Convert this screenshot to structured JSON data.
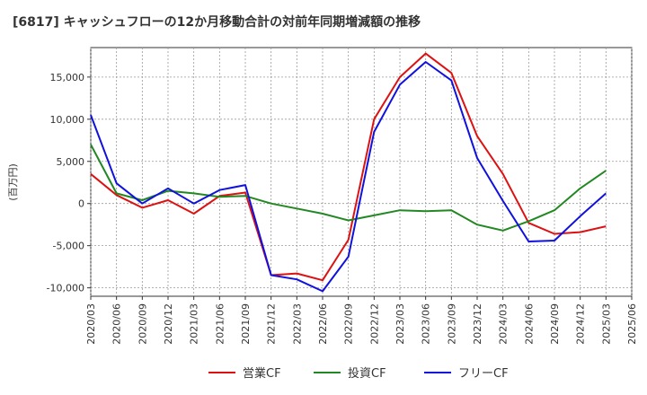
{
  "chart_data": {
    "type": "line",
    "title": "[6817]  キャッシュフローの12か月移動合計の対前年同期増減額の推移",
    "ylabel": "(百万円)",
    "ylim": [
      -11000,
      18500
    ],
    "yticks": [
      -10000,
      -5000,
      0,
      5000,
      10000,
      15000
    ],
    "ytick_labels": [
      "-10,000",
      "-5,000",
      "0",
      "5,000",
      "10,000",
      "15,000"
    ],
    "x": [
      "2020/03",
      "2020/06",
      "2020/09",
      "2020/12",
      "2021/03",
      "2021/06",
      "2021/09",
      "2021/12",
      "2022/03",
      "2022/06",
      "2022/09",
      "2022/12",
      "2023/03",
      "2023/06",
      "2023/09",
      "2023/12",
      "2024/03",
      "2024/06",
      "2024/09",
      "2024/12",
      "2025/03",
      "2025/06"
    ],
    "grid": true,
    "legend_position": "bottom",
    "series": [
      {
        "name": "営業CF",
        "color": "#dd1111",
        "values": [
          3500,
          1000,
          -500,
          400,
          -1200,
          900,
          1300,
          -8500,
          -8300,
          -9100,
          -4300,
          10000,
          15000,
          17800,
          15500,
          8000,
          3500,
          -2300,
          -3600,
          -3400,
          -2700,
          null
        ]
      },
      {
        "name": "投資CF",
        "color": "#228822",
        "values": [
          7000,
          1200,
          400,
          1500,
          1200,
          800,
          900,
          0,
          -600,
          -1200,
          -2000,
          -1400,
          -800,
          -900,
          -800,
          -2500,
          -3200,
          -2100,
          -800,
          1800,
          3900,
          null
        ]
      },
      {
        "name": "フリーCF",
        "color": "#1111dd",
        "values": [
          10500,
          2400,
          0,
          1800,
          0,
          1600,
          2200,
          -8500,
          -9000,
          -10400,
          -6300,
          8500,
          14100,
          16800,
          14600,
          5400,
          300,
          -4500,
          -4400,
          -1500,
          1200,
          null
        ]
      }
    ]
  }
}
